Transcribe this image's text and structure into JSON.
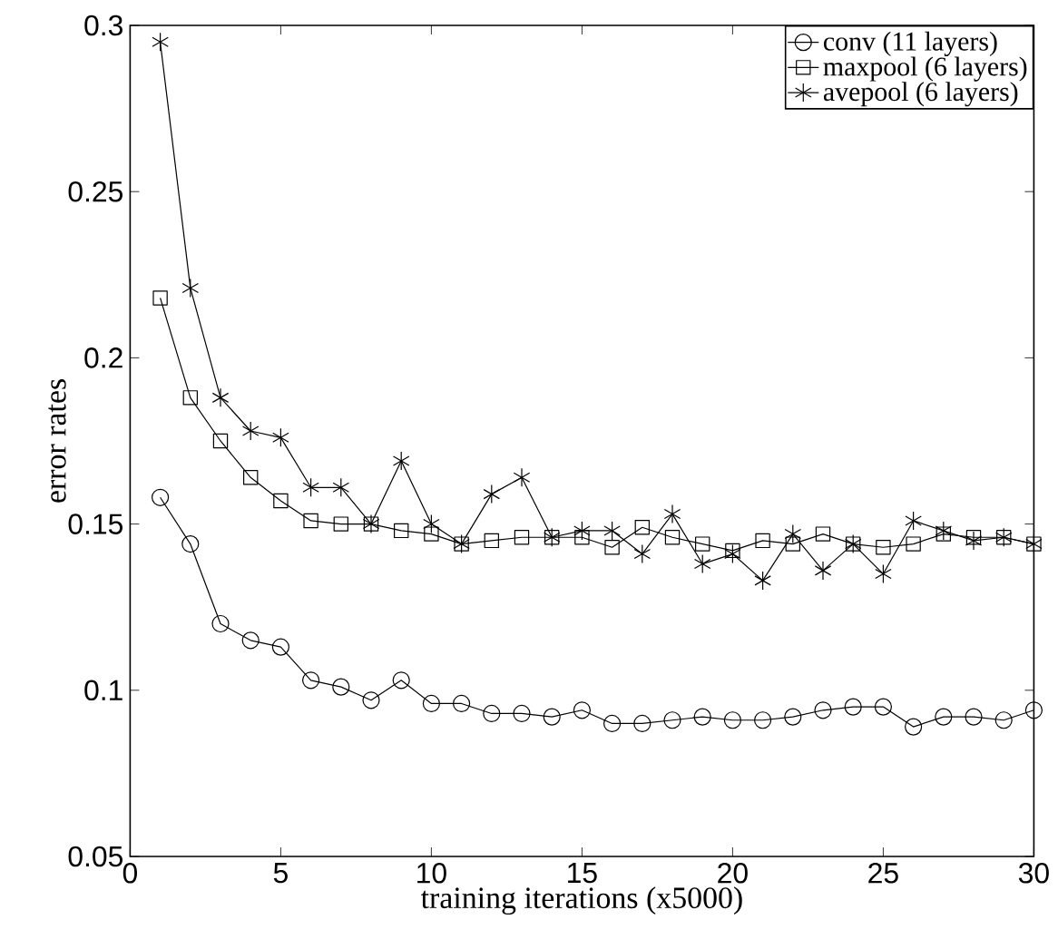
{
  "chart_data": {
    "type": "line",
    "xlabel": "training iterations (x5000)",
    "ylabel": "error rates",
    "x": [
      1,
      2,
      3,
      4,
      5,
      6,
      7,
      8,
      9,
      10,
      11,
      12,
      13,
      14,
      15,
      16,
      17,
      18,
      19,
      20,
      21,
      22,
      23,
      24,
      25,
      26,
      27,
      28,
      29,
      30
    ],
    "series": [
      {
        "name": "conv (11 layers)",
        "color": "#000000",
        "marker": "circle",
        "values": [
          0.158,
          0.144,
          0.12,
          0.115,
          0.113,
          0.103,
          0.101,
          0.097,
          0.103,
          0.096,
          0.096,
          0.093,
          0.093,
          0.092,
          0.094,
          0.09,
          0.09,
          0.091,
          0.092,
          0.091,
          0.091,
          0.092,
          0.094,
          0.095,
          0.095,
          0.089,
          0.092,
          0.092,
          0.091,
          0.094
        ]
      },
      {
        "name": "maxpool (6 layers)",
        "color": "#000000",
        "marker": "square",
        "values": [
          0.218,
          0.188,
          0.175,
          0.164,
          0.157,
          0.151,
          0.15,
          0.15,
          0.148,
          0.147,
          0.144,
          0.145,
          0.146,
          0.146,
          0.146,
          0.143,
          0.149,
          0.146,
          0.144,
          0.142,
          0.145,
          0.144,
          0.147,
          0.144,
          0.143,
          0.144,
          0.147,
          0.146,
          0.146,
          0.144
        ]
      },
      {
        "name": "avepool (6 layers)",
        "color": "#000000",
        "marker": "cross",
        "values": [
          0.295,
          0.221,
          0.188,
          0.178,
          0.176,
          0.161,
          0.161,
          0.15,
          0.169,
          0.15,
          0.144,
          0.159,
          0.164,
          0.146,
          0.148,
          0.148,
          0.141,
          0.153,
          0.138,
          0.141,
          0.133,
          0.147,
          0.136,
          0.144,
          0.135,
          0.151,
          0.148,
          0.145,
          0.146,
          0.144
        ]
      }
    ],
    "xlim": [
      0,
      30
    ],
    "ylim": [
      0.05,
      0.3
    ],
    "xticks": [
      0,
      5,
      10,
      15,
      20,
      25,
      30
    ],
    "yticks": [
      0.05,
      0.1,
      0.15,
      0.2,
      0.25,
      0.3
    ],
    "legend": "top right",
    "line_style": "solid"
  }
}
